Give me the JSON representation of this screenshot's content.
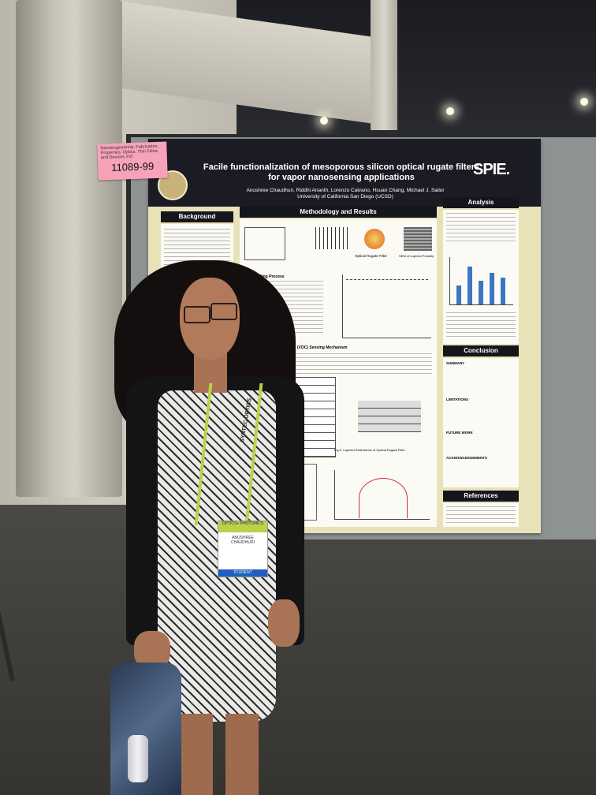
{
  "scene": {
    "colors": {
      "poster_bg": "#e8e2b8",
      "poster_header": "#1b1b24",
      "tag": "#f6a3b9",
      "lanyard": "#b8d34a",
      "badge_strip": "#1f5fbf"
    }
  },
  "tag": {
    "small_text": "Nanoengineering: Fabrication, Properties, Optics, Thin Films, and Devices XVI",
    "number": "11089-99"
  },
  "poster": {
    "title_line1": "Facile functionalization of mesoporous silicon optical rugate filters",
    "title_line2": "for vapor nanosensing applications",
    "authors": "Anushree Chaudhuri, Riddhi Ananth, Lorenzo Calvano, Hsuan Chang, Michael J. Sailor",
    "affiliation": "University of California San Diego (UCSD)",
    "logo": "SPIE.",
    "sections": {
      "background": "Background",
      "methodology": "Methodology and Results",
      "analysis": "Analysis",
      "conclusion": "Conclusion",
      "references": "References"
    },
    "figure_labels": {
      "optical_rugate_filter": "Optical Rugate Filter",
      "sem": "SEM of Layered Porosity",
      "grafting": "The Grafting Process",
      "voc_sensing": "Volatile Organic Compound (VOC) Sensing Mechanism",
      "layered_reflectance": "Fig 5. Layered Reflectance of Optical Rugate Filter"
    },
    "conclusion_items": [
      "SUMMARY",
      "LIMITATIONS",
      "FUTURE WORK",
      "ACKNOWLEDGEMENTS"
    ]
  },
  "badge": {
    "top": "OPTICS+ PHOTONICS",
    "name": "ANUSHREE CHAUDHURI",
    "footer": "STUDENT"
  },
  "lanyard_text": "SYNTEC OPTICS"
}
